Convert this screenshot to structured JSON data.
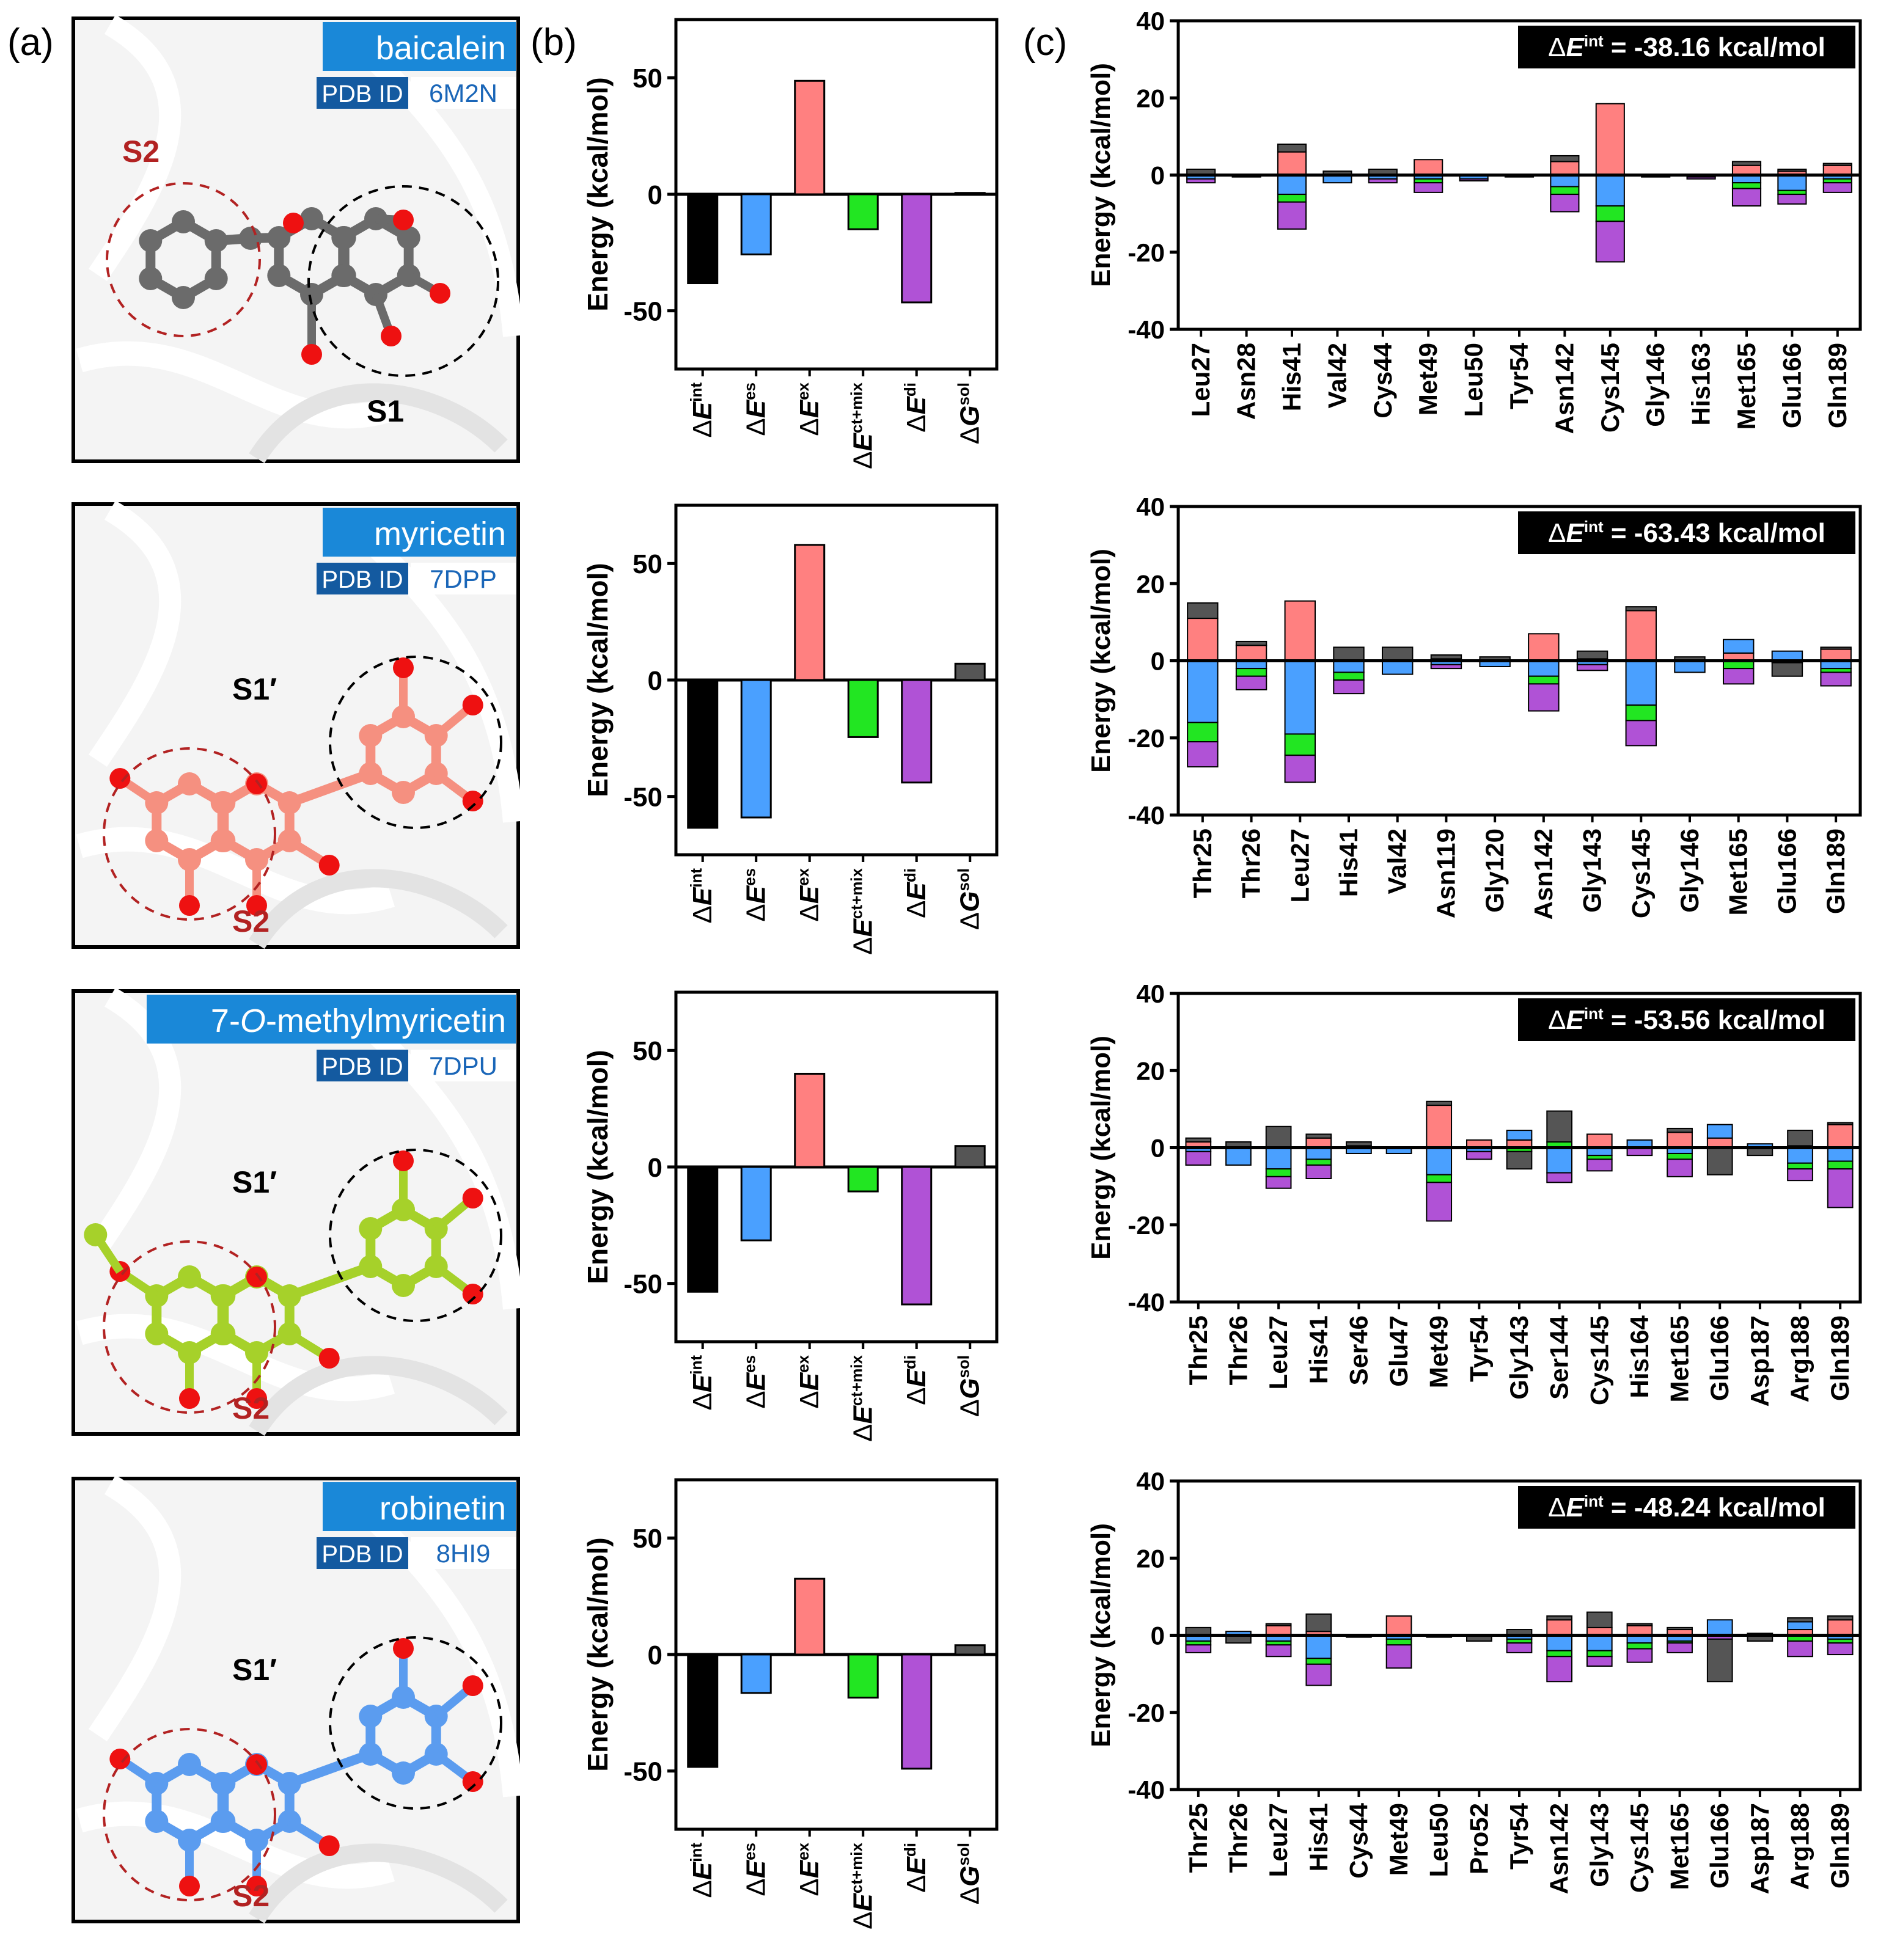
{
  "panel_labels": {
    "a": "(a)",
    "b": "(b)",
    "c": "(c)"
  },
  "colors": {
    "es": "#4aa0ff",
    "ex": "#ff8080",
    "ctmix": "#22e622",
    "di": "#b052d6",
    "sol": "#555555",
    "int": "#000000",
    "label_blue": "#1a88d8",
    "label_dark": "#145aa0",
    "pocket_red": "#b22222",
    "pocket_black": "#000000"
  },
  "ligands": [
    {
      "name": "baicalein",
      "pdb_label": "PDB ID",
      "pdb_id": "6M2N",
      "pockets": [
        "S2",
        "S1"
      ],
      "atom_color": "#6b6b6b"
    },
    {
      "name": "myricetin",
      "pdb_label": "PDB ID",
      "pdb_id": "7DPP",
      "pockets": [
        "S1′",
        "S2"
      ],
      "atom_color": "#f59080"
    },
    {
      "name_parts": [
        "7-",
        "O",
        "-methylmyricetin"
      ],
      "name": "7-O-methylmyricetin",
      "pdb_label": "PDB ID",
      "pdb_id": "7DPU",
      "pockets": [
        "S1′",
        "S2"
      ],
      "atom_color": "#a6d12a"
    },
    {
      "name": "robinetin",
      "pdb_label": "PDB ID",
      "pdb_id": "8HI9",
      "pockets": [
        "S1′",
        "S2"
      ],
      "atom_color": "#5b9cef"
    }
  ],
  "chart_data": [
    {
      "type": "bar",
      "panel": "b",
      "row": 1,
      "ylabel": "Energy (kcal/mol)",
      "ylim": [
        -75,
        75
      ],
      "yticks": [
        "50",
        "0",
        "-50"
      ],
      "categories": [
        [
          "Δ",
          "E",
          "int"
        ],
        [
          "Δ",
          "E",
          "es"
        ],
        [
          "Δ",
          "E",
          "ex"
        ],
        [
          "Δ",
          "E",
          "ct+mix"
        ],
        [
          "Δ",
          "E",
          "di"
        ],
        [
          "Δ",
          "G",
          "sol"
        ]
      ],
      "values": [
        -38.16,
        -25.8,
        48.7,
        -15.0,
        -46.4,
        0.6
      ]
    },
    {
      "type": "bar",
      "panel": "b",
      "row": 2,
      "ylabel": "Energy (kcal/mol)",
      "ylim": [
        -75,
        75
      ],
      "yticks": [
        "50",
        "0",
        "-50"
      ],
      "categories": [
        [
          "Δ",
          "E",
          "int"
        ],
        [
          "Δ",
          "E",
          "es"
        ],
        [
          "Δ",
          "E",
          "ex"
        ],
        [
          "Δ",
          "E",
          "ct+mix"
        ],
        [
          "Δ",
          "E",
          "di"
        ],
        [
          "Δ",
          "G",
          "sol"
        ]
      ],
      "values": [
        -63.43,
        -59.0,
        58.0,
        -24.5,
        -44.0,
        7.0
      ]
    },
    {
      "type": "bar",
      "panel": "b",
      "row": 3,
      "ylabel": "Energy (kcal/mol)",
      "ylim": [
        -75,
        75
      ],
      "yticks": [
        "50",
        "0",
        "-50"
      ],
      "categories": [
        [
          "Δ",
          "E",
          "int"
        ],
        [
          "Δ",
          "E",
          "es"
        ],
        [
          "Δ",
          "E",
          "ex"
        ],
        [
          "Δ",
          "E",
          "ct+mix"
        ],
        [
          "Δ",
          "E",
          "di"
        ],
        [
          "Δ",
          "G",
          "sol"
        ]
      ],
      "values": [
        -53.56,
        -31.5,
        40.0,
        -10.5,
        -59.0,
        9.0
      ]
    },
    {
      "type": "bar",
      "panel": "b",
      "row": 4,
      "ylabel": "Energy (kcal/mol)",
      "ylim": [
        -75,
        75
      ],
      "yticks": [
        "50",
        "0",
        "-50"
      ],
      "categories": [
        [
          "Δ",
          "E",
          "int"
        ],
        [
          "Δ",
          "E",
          "es"
        ],
        [
          "Δ",
          "E",
          "ex"
        ],
        [
          "Δ",
          "E",
          "ct+mix"
        ],
        [
          "Δ",
          "E",
          "di"
        ],
        [
          "Δ",
          "G",
          "sol"
        ]
      ],
      "values": [
        -48.24,
        -16.5,
        32.5,
        -18.5,
        -49.0,
        4.0
      ]
    },
    {
      "type": "bar",
      "stacked": true,
      "panel": "c",
      "row": 1,
      "ylabel": "Energy (kcal/mol)",
      "ylim": [
        -40,
        40
      ],
      "yticks": [
        "40",
        "20",
        "0",
        "-20",
        "-40"
      ],
      "annotation": {
        "prefix": "Δ",
        "var": "E",
        "sup": "int",
        "value": " = -38.16 kcal/mol"
      },
      "categories": [
        "Leu27",
        "Asn28",
        "His41",
        "Val42",
        "Cys44",
        "Met49",
        "Leu50",
        "Tyr54",
        "Asn142",
        "Cys145",
        "Gly146",
        "His163",
        "Met165",
        "Glu166",
        "Gln189"
      ],
      "residues": [
        {
          "sol": 1.5,
          "ex": 0,
          "es": -1.0,
          "ctmix": 0,
          "di": -1.0
        },
        {
          "sol": 0,
          "ex": 0,
          "es": 0,
          "ctmix": 0,
          "di": -0.5
        },
        {
          "sol": 2.0,
          "ex": 6.0,
          "es": -5.0,
          "ctmix": -2.0,
          "di": -7.0
        },
        {
          "sol": 1.0,
          "ex": 0,
          "es": -2.0,
          "ctmix": 0,
          "di": 0
        },
        {
          "sol": 1.5,
          "ex": 0,
          "es": -1.0,
          "ctmix": 0,
          "di": -1.0
        },
        {
          "sol": 0,
          "ex": 4.0,
          "es": -1.0,
          "ctmix": -1.0,
          "di": -2.5
        },
        {
          "sol": 0,
          "ex": 0,
          "es": -1.0,
          "ctmix": 0,
          "di": -0.5
        },
        {
          "sol": 0,
          "ex": 0,
          "es": 0,
          "ctmix": 0,
          "di": -0.5
        },
        {
          "sol": 1.5,
          "ex": 3.5,
          "es": -3.0,
          "ctmix": -2.0,
          "di": -4.5
        },
        {
          "sol": 0,
          "ex": 18.5,
          "es": -8.0,
          "ctmix": -4.0,
          "di": -10.5
        },
        {
          "sol": 0,
          "ex": 0,
          "es": -0.5,
          "ctmix": 0,
          "di": 0
        },
        {
          "sol": 0,
          "ex": 0,
          "es": -0.5,
          "ctmix": 0,
          "di": -0.5
        },
        {
          "sol": 1.0,
          "ex": 2.5,
          "es": -2.0,
          "ctmix": -1.5,
          "di": -4.5
        },
        {
          "sol": 0.5,
          "ex": 1.0,
          "es": -4.0,
          "ctmix": -1.0,
          "di": -2.5
        },
        {
          "sol": 0.5,
          "ex": 2.5,
          "es": -1.0,
          "ctmix": -1.0,
          "di": -2.5
        }
      ]
    },
    {
      "type": "bar",
      "stacked": true,
      "panel": "c",
      "row": 2,
      "ylabel": "Energy (kcal/mol)",
      "ylim": [
        -40,
        40
      ],
      "yticks": [
        "40",
        "20",
        "0",
        "-20",
        "-40"
      ],
      "annotation": {
        "prefix": "Δ",
        "var": "E",
        "sup": "int",
        "value": " = -63.43 kcal/mol"
      },
      "categories": [
        "Thr25",
        "Thr26",
        "Leu27",
        "His41",
        "Val42",
        "Asn119",
        "Gly120",
        "Asn142",
        "Gly143",
        "Cys145",
        "Gly146",
        "Met165",
        "Glu166",
        "Gln189"
      ],
      "residues": [
        {
          "sol": 4.0,
          "ex": 11.0,
          "es": -16.0,
          "ctmix": -5.0,
          "di": -6.5
        },
        {
          "sol": 1.0,
          "ex": 4.0,
          "es": -2.0,
          "ctmix": -2.0,
          "di": -3.5
        },
        {
          "sol": 0,
          "ex": 15.5,
          "es": -19.0,
          "ctmix": -5.5,
          "di": -7.0
        },
        {
          "sol": 3.5,
          "ex": 0,
          "es": -3.0,
          "ctmix": -2.0,
          "di": -3.5
        },
        {
          "sol": 3.5,
          "ex": 0,
          "es": -3.5,
          "ctmix": 0,
          "di": 0
        },
        {
          "sol": 1.0,
          "ex": 0.5,
          "es": -1.0,
          "ctmix": 0,
          "di": -1.0
        },
        {
          "sol": 1.0,
          "ex": 0,
          "es": -1.5,
          "ctmix": 0,
          "di": 0
        },
        {
          "sol": 0,
          "ex": 7.0,
          "es": -4.0,
          "ctmix": -2.0,
          "di": -7.0
        },
        {
          "sol": 2.0,
          "ex": 0.5,
          "es": -1.0,
          "ctmix": 0,
          "di": -1.5
        },
        {
          "sol": 1.0,
          "ex": 13.0,
          "es": -11.5,
          "ctmix": -4.0,
          "di": -6.5
        },
        {
          "sol": 1.0,
          "ex": 0,
          "es": -3.0,
          "ctmix": 0,
          "di": 0
        },
        {
          "sol": 0,
          "ex": 2.0,
          "es": 3.5,
          "ctmix": -2.0,
          "di": -4.0
        },
        {
          "sol": -3.5,
          "ex": 0,
          "es": 2.5,
          "ctmix": 0,
          "di": -0.5
        },
        {
          "sol": 0.5,
          "ex": 3.0,
          "es": -2.0,
          "ctmix": -1.0,
          "di": -3.5
        }
      ]
    },
    {
      "type": "bar",
      "stacked": true,
      "panel": "c",
      "row": 3,
      "ylabel": "Energy (kcal/mol)",
      "ylim": [
        -40,
        40
      ],
      "yticks": [
        "40",
        "20",
        "0",
        "-20",
        "-40"
      ],
      "annotation": {
        "prefix": "Δ",
        "var": "E",
        "sup": "int",
        "value": " = -53.56 kcal/mol"
      },
      "categories": [
        "Thr25",
        "Thr26",
        "Leu27",
        "His41",
        "Ser46",
        "Glu47",
        "Met49",
        "Tyr54",
        "Gly143",
        "Ser144",
        "Cys145",
        "His164",
        "Met165",
        "Glu166",
        "Asp187",
        "Arg188",
        "Gln189"
      ],
      "residues": [
        {
          "sol": 1.0,
          "ex": 1.5,
          "es": -1.0,
          "ctmix": 0,
          "di": -3.5
        },
        {
          "sol": 1.5,
          "ex": 0,
          "es": -4.5,
          "ctmix": 0,
          "di": 0
        },
        {
          "sol": 5.5,
          "ex": 0,
          "es": -5.5,
          "ctmix": -2.0,
          "di": -3.0
        },
        {
          "sol": 1.0,
          "ex": 2.5,
          "es": -3.0,
          "ctmix": -1.5,
          "di": -3.5
        },
        {
          "sol": 1.0,
          "ex": 0.5,
          "es": -1.5,
          "ctmix": 0,
          "di": 0
        },
        {
          "sol": 0,
          "ex": 0,
          "es": -1.5,
          "ctmix": 0,
          "di": 0
        },
        {
          "sol": 1.0,
          "ex": 11.0,
          "es": -7.0,
          "ctmix": -2.0,
          "di": -10.0
        },
        {
          "sol": 0,
          "ex": 2.0,
          "es": -1.0,
          "ctmix": 0,
          "di": -2.0
        },
        {
          "sol": -4.5,
          "ex": 2.0,
          "es": 2.5,
          "ctmix": -1.0,
          "di": 0
        },
        {
          "sol": 8.0,
          "ex": 0,
          "es": -6.5,
          "ctmix": 1.5,
          "di": -2.5
        },
        {
          "sol": 0,
          "ex": 3.5,
          "es": -2.0,
          "ctmix": -1.0,
          "di": -3.0
        },
        {
          "sol": 0,
          "ex": 0,
          "es": 2.0,
          "ctmix": 0,
          "di": -2.0
        },
        {
          "sol": 1.0,
          "ex": 4.0,
          "es": -1.5,
          "ctmix": -1.5,
          "di": -4.5
        },
        {
          "sol": -7.0,
          "ex": 2.5,
          "es": 3.5,
          "ctmix": 0,
          "di": 0
        },
        {
          "sol": -2.0,
          "ex": 0,
          "es": 1.0,
          "ctmix": 0,
          "di": 0
        },
        {
          "sol": 4.0,
          "ex": 0.5,
          "es": -4.0,
          "ctmix": -1.5,
          "di": -3.0
        },
        {
          "sol": 0.5,
          "ex": 6.0,
          "es": -3.5,
          "ctmix": -2.0,
          "di": -10.0
        }
      ]
    },
    {
      "type": "bar",
      "stacked": true,
      "panel": "c",
      "row": 4,
      "ylabel": "Energy (kcal/mol)",
      "ylim": [
        -40,
        40
      ],
      "yticks": [
        "40",
        "20",
        "0",
        "-20",
        "-40"
      ],
      "annotation": {
        "prefix": "Δ",
        "var": "E",
        "sup": "int",
        "value": " = -48.24 kcal/mol"
      },
      "categories": [
        "Thr25",
        "Thr26",
        "Leu27",
        "His41",
        "Cys44",
        "Met49",
        "Leu50",
        "Pro52",
        "Tyr54",
        "Asn142",
        "Gly143",
        "Cys145",
        "Met165",
        "Glu166",
        "Asp187",
        "Arg188",
        "Gln189"
      ],
      "residues": [
        {
          "sol": 2.0,
          "ex": 0,
          "es": -1.5,
          "ctmix": -1.0,
          "di": -2.0
        },
        {
          "sol": -2.0,
          "ex": 0,
          "es": 1.0,
          "ctmix": 0,
          "di": 0
        },
        {
          "sol": 0.5,
          "ex": 2.5,
          "es": -1.5,
          "ctmix": -1.0,
          "di": -3.0
        },
        {
          "sol": 4.5,
          "ex": 1.0,
          "es": -6.0,
          "ctmix": -1.5,
          "di": -5.5
        },
        {
          "sol": 0,
          "ex": 0,
          "es": -0.5,
          "ctmix": 0,
          "di": 0
        },
        {
          "sol": 0,
          "ex": 5.0,
          "es": -1.0,
          "ctmix": -1.5,
          "di": -6.0
        },
        {
          "sol": 0,
          "ex": 0,
          "es": -0.5,
          "ctmix": 0,
          "di": 0
        },
        {
          "sol": -1.5,
          "ex": 0,
          "es": 0,
          "ctmix": 0,
          "di": 0
        },
        {
          "sol": 1.5,
          "ex": 0,
          "es": -1.0,
          "ctmix": -1.0,
          "di": -2.5
        },
        {
          "sol": 1.0,
          "ex": 4.0,
          "es": -4.0,
          "ctmix": -1.5,
          "di": -6.5
        },
        {
          "sol": 4.0,
          "ex": 2.0,
          "es": -4.0,
          "ctmix": -1.5,
          "di": -2.5
        },
        {
          "sol": 0.5,
          "ex": 2.5,
          "es": -2.0,
          "ctmix": -1.5,
          "di": -3.5
        },
        {
          "sol": 0.5,
          "ex": 1.5,
          "es": -1.5,
          "ctmix": -0.5,
          "di": -2.5
        },
        {
          "sol": -11.0,
          "ex": 0,
          "es": 4.0,
          "ctmix": 0,
          "di": -1.0
        },
        {
          "sol": -1.5,
          "ex": 0,
          "es": 0.5,
          "ctmix": 0,
          "di": 0
        },
        {
          "sol": 1.0,
          "ex": 1.5,
          "es": 2.0,
          "ctmix": -1.5,
          "di": -4.0
        },
        {
          "sol": 1.0,
          "ex": 4.0,
          "es": -1.0,
          "ctmix": -1.0,
          "di": -3.0
        }
      ]
    }
  ]
}
